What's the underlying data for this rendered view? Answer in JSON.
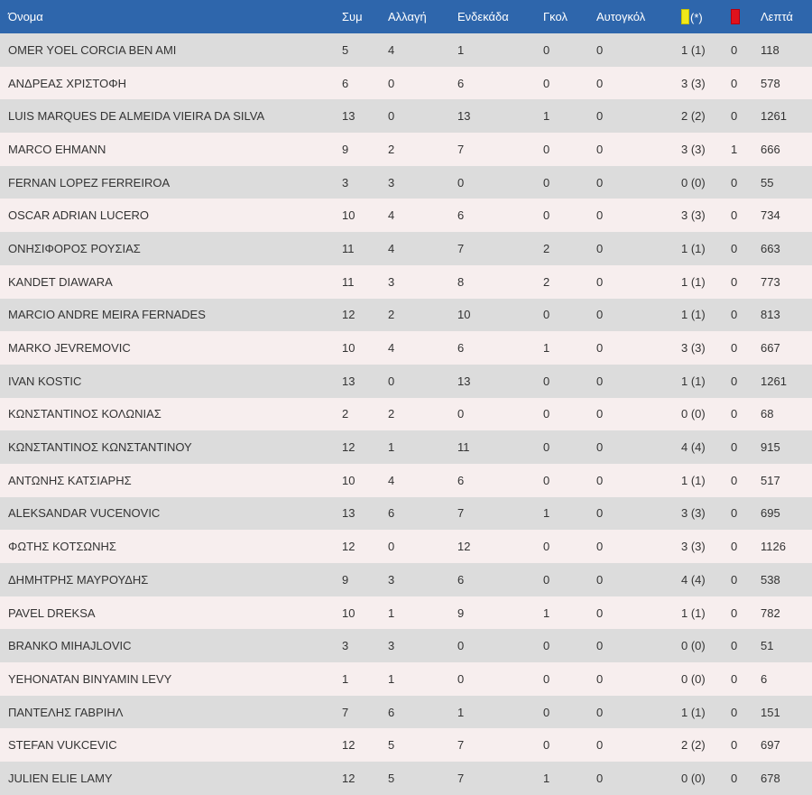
{
  "header": {
    "name": "Όνομα",
    "apps": "Συμ",
    "subs": "Αλλαγή",
    "starts": "Ενδεκάδα",
    "goals": "Γκολ",
    "own_goals": "Αυτογκόλ",
    "yellow_suffix": "(*)",
    "minutes": "Λεπτά",
    "yellow_card_color": "#f0e81a",
    "red_card_color": "#e0121c"
  },
  "colors": {
    "header_bg": "#2e66ac",
    "row_odd": "#dcdcdc",
    "row_even": "#f7eeee"
  },
  "rows": [
    {
      "name": "OMER YOEL CORCIA BEN AMI",
      "apps": "5",
      "subs": "4",
      "starts": "1",
      "goals": "0",
      "own_goals": "0",
      "yellow": "1 (1)",
      "red": "0",
      "minutes": "118"
    },
    {
      "name": "ΑΝΔΡΕΑΣ ΧΡΙΣΤΟΦΗ",
      "apps": "6",
      "subs": "0",
      "starts": "6",
      "goals": "0",
      "own_goals": "0",
      "yellow": "3 (3)",
      "red": "0",
      "minutes": "578"
    },
    {
      "name": "LUIS MARQUES DE ALMEIDA VIEIRA DA SILVA",
      "apps": "13",
      "subs": "0",
      "starts": "13",
      "goals": "1",
      "own_goals": "0",
      "yellow": "2 (2)",
      "red": "0",
      "minutes": "1261"
    },
    {
      "name": "MARCO EHMANN",
      "apps": "9",
      "subs": "2",
      "starts": "7",
      "goals": "0",
      "own_goals": "0",
      "yellow": "3 (3)",
      "red": "1",
      "minutes": "666"
    },
    {
      "name": "FERNAN LOPEZ FERREIROA",
      "apps": "3",
      "subs": "3",
      "starts": "0",
      "goals": "0",
      "own_goals": "0",
      "yellow": "0 (0)",
      "red": "0",
      "minutes": "55"
    },
    {
      "name": "OSCAR ADRIAN LUCERO",
      "apps": "10",
      "subs": "4",
      "starts": "6",
      "goals": "0",
      "own_goals": "0",
      "yellow": "3 (3)",
      "red": "0",
      "minutes": "734"
    },
    {
      "name": "ΟΝΗΣΙΦΟΡΟΣ ΡΟΥΣΙΑΣ",
      "apps": "11",
      "subs": "4",
      "starts": "7",
      "goals": "2",
      "own_goals": "0",
      "yellow": "1 (1)",
      "red": "0",
      "minutes": "663"
    },
    {
      "name": "KANDET DIAWARA",
      "apps": "11",
      "subs": "3",
      "starts": "8",
      "goals": "2",
      "own_goals": "0",
      "yellow": "1 (1)",
      "red": "0",
      "minutes": "773"
    },
    {
      "name": "MARCIO ANDRE MEIRA FERNADES",
      "apps": "12",
      "subs": "2",
      "starts": "10",
      "goals": "0",
      "own_goals": "0",
      "yellow": "1 (1)",
      "red": "0",
      "minutes": "813"
    },
    {
      "name": "MARKO JEVREMOVIC",
      "apps": "10",
      "subs": "4",
      "starts": "6",
      "goals": "1",
      "own_goals": "0",
      "yellow": "3 (3)",
      "red": "0",
      "minutes": "667"
    },
    {
      "name": "IVAN KOSTIC",
      "apps": "13",
      "subs": "0",
      "starts": "13",
      "goals": "0",
      "own_goals": "0",
      "yellow": "1 (1)",
      "red": "0",
      "minutes": "1261"
    },
    {
      "name": "ΚΩΝΣΤΑΝΤΙΝΟΣ ΚΟΛΩΝΙΑΣ",
      "apps": "2",
      "subs": "2",
      "starts": "0",
      "goals": "0",
      "own_goals": "0",
      "yellow": "0 (0)",
      "red": "0",
      "minutes": "68"
    },
    {
      "name": "ΚΩΝΣΤΑΝΤΙΝΟΣ ΚΩΝΣΤΑΝΤΙΝΟΥ",
      "apps": "12",
      "subs": "1",
      "starts": "11",
      "goals": "0",
      "own_goals": "0",
      "yellow": "4 (4)",
      "red": "0",
      "minutes": "915"
    },
    {
      "name": "ΑΝΤΩΝΗΣ ΚΑΤΣΙΑΡΗΣ",
      "apps": "10",
      "subs": "4",
      "starts": "6",
      "goals": "0",
      "own_goals": "0",
      "yellow": "1 (1)",
      "red": "0",
      "minutes": "517"
    },
    {
      "name": "ALEKSANDAR VUCENOVIC",
      "apps": "13",
      "subs": "6",
      "starts": "7",
      "goals": "1",
      "own_goals": "0",
      "yellow": "3 (3)",
      "red": "0",
      "minutes": "695"
    },
    {
      "name": "ΦΩΤΗΣ ΚΟΤΣΩΝΗΣ",
      "apps": "12",
      "subs": "0",
      "starts": "12",
      "goals": "0",
      "own_goals": "0",
      "yellow": "3 (3)",
      "red": "0",
      "minutes": "1126"
    },
    {
      "name": "ΔΗΜΗΤΡΗΣ ΜΑΥΡΟΥΔΗΣ",
      "apps": "9",
      "subs": "3",
      "starts": "6",
      "goals": "0",
      "own_goals": "0",
      "yellow": "4 (4)",
      "red": "0",
      "minutes": "538"
    },
    {
      "name": "PAVEL DREKSA",
      "apps": "10",
      "subs": "1",
      "starts": "9",
      "goals": "1",
      "own_goals": "0",
      "yellow": "1 (1)",
      "red": "0",
      "minutes": "782"
    },
    {
      "name": "BRANKO MIHAJLOVIC",
      "apps": "3",
      "subs": "3",
      "starts": "0",
      "goals": "0",
      "own_goals": "0",
      "yellow": "0 (0)",
      "red": "0",
      "minutes": "51"
    },
    {
      "name": "YEHONATAN BINYAMIN LEVY",
      "apps": "1",
      "subs": "1",
      "starts": "0",
      "goals": "0",
      "own_goals": "0",
      "yellow": "0 (0)",
      "red": "0",
      "minutes": "6"
    },
    {
      "name": "ΠΑΝΤΕΛΗΣ ΓΑΒΡΙΗΛ",
      "apps": "7",
      "subs": "6",
      "starts": "1",
      "goals": "0",
      "own_goals": "0",
      "yellow": "1 (1)",
      "red": "0",
      "minutes": "151"
    },
    {
      "name": "STEFAN VUKCEVIC",
      "apps": "12",
      "subs": "5",
      "starts": "7",
      "goals": "0",
      "own_goals": "0",
      "yellow": "2 (2)",
      "red": "0",
      "minutes": "697"
    },
    {
      "name": "JULIEN ELIE LAMY",
      "apps": "12",
      "subs": "5",
      "starts": "7",
      "goals": "1",
      "own_goals": "0",
      "yellow": "0 (0)",
      "red": "0",
      "minutes": "678"
    }
  ]
}
